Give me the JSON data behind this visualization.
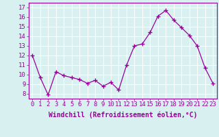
{
  "x": [
    0,
    1,
    2,
    3,
    4,
    5,
    6,
    7,
    8,
    9,
    10,
    11,
    12,
    13,
    14,
    15,
    16,
    17,
    18,
    19,
    20,
    21,
    22,
    23
  ],
  "y": [
    12.0,
    9.7,
    7.9,
    10.3,
    9.9,
    9.7,
    9.5,
    9.1,
    9.4,
    8.8,
    9.2,
    8.4,
    11.0,
    13.0,
    13.2,
    14.4,
    16.1,
    16.7,
    15.7,
    14.9,
    14.1,
    13.0,
    10.7,
    9.1
  ],
  "line_color": "#990099",
  "marker": "+",
  "marker_size": 4,
  "bg_color": "#d8f0f0",
  "grid_color": "#ffffff",
  "xlabel": "Windchill (Refroidissement éolien,°C)",
  "ylabel_left_ticks": [
    8,
    9,
    10,
    11,
    12,
    13,
    14,
    15,
    16,
    17
  ],
  "ylim": [
    7.5,
    17.5
  ],
  "xlim": [
    -0.5,
    23.5
  ],
  "tick_fontsize": 6.5,
  "xlabel_fontsize": 7
}
